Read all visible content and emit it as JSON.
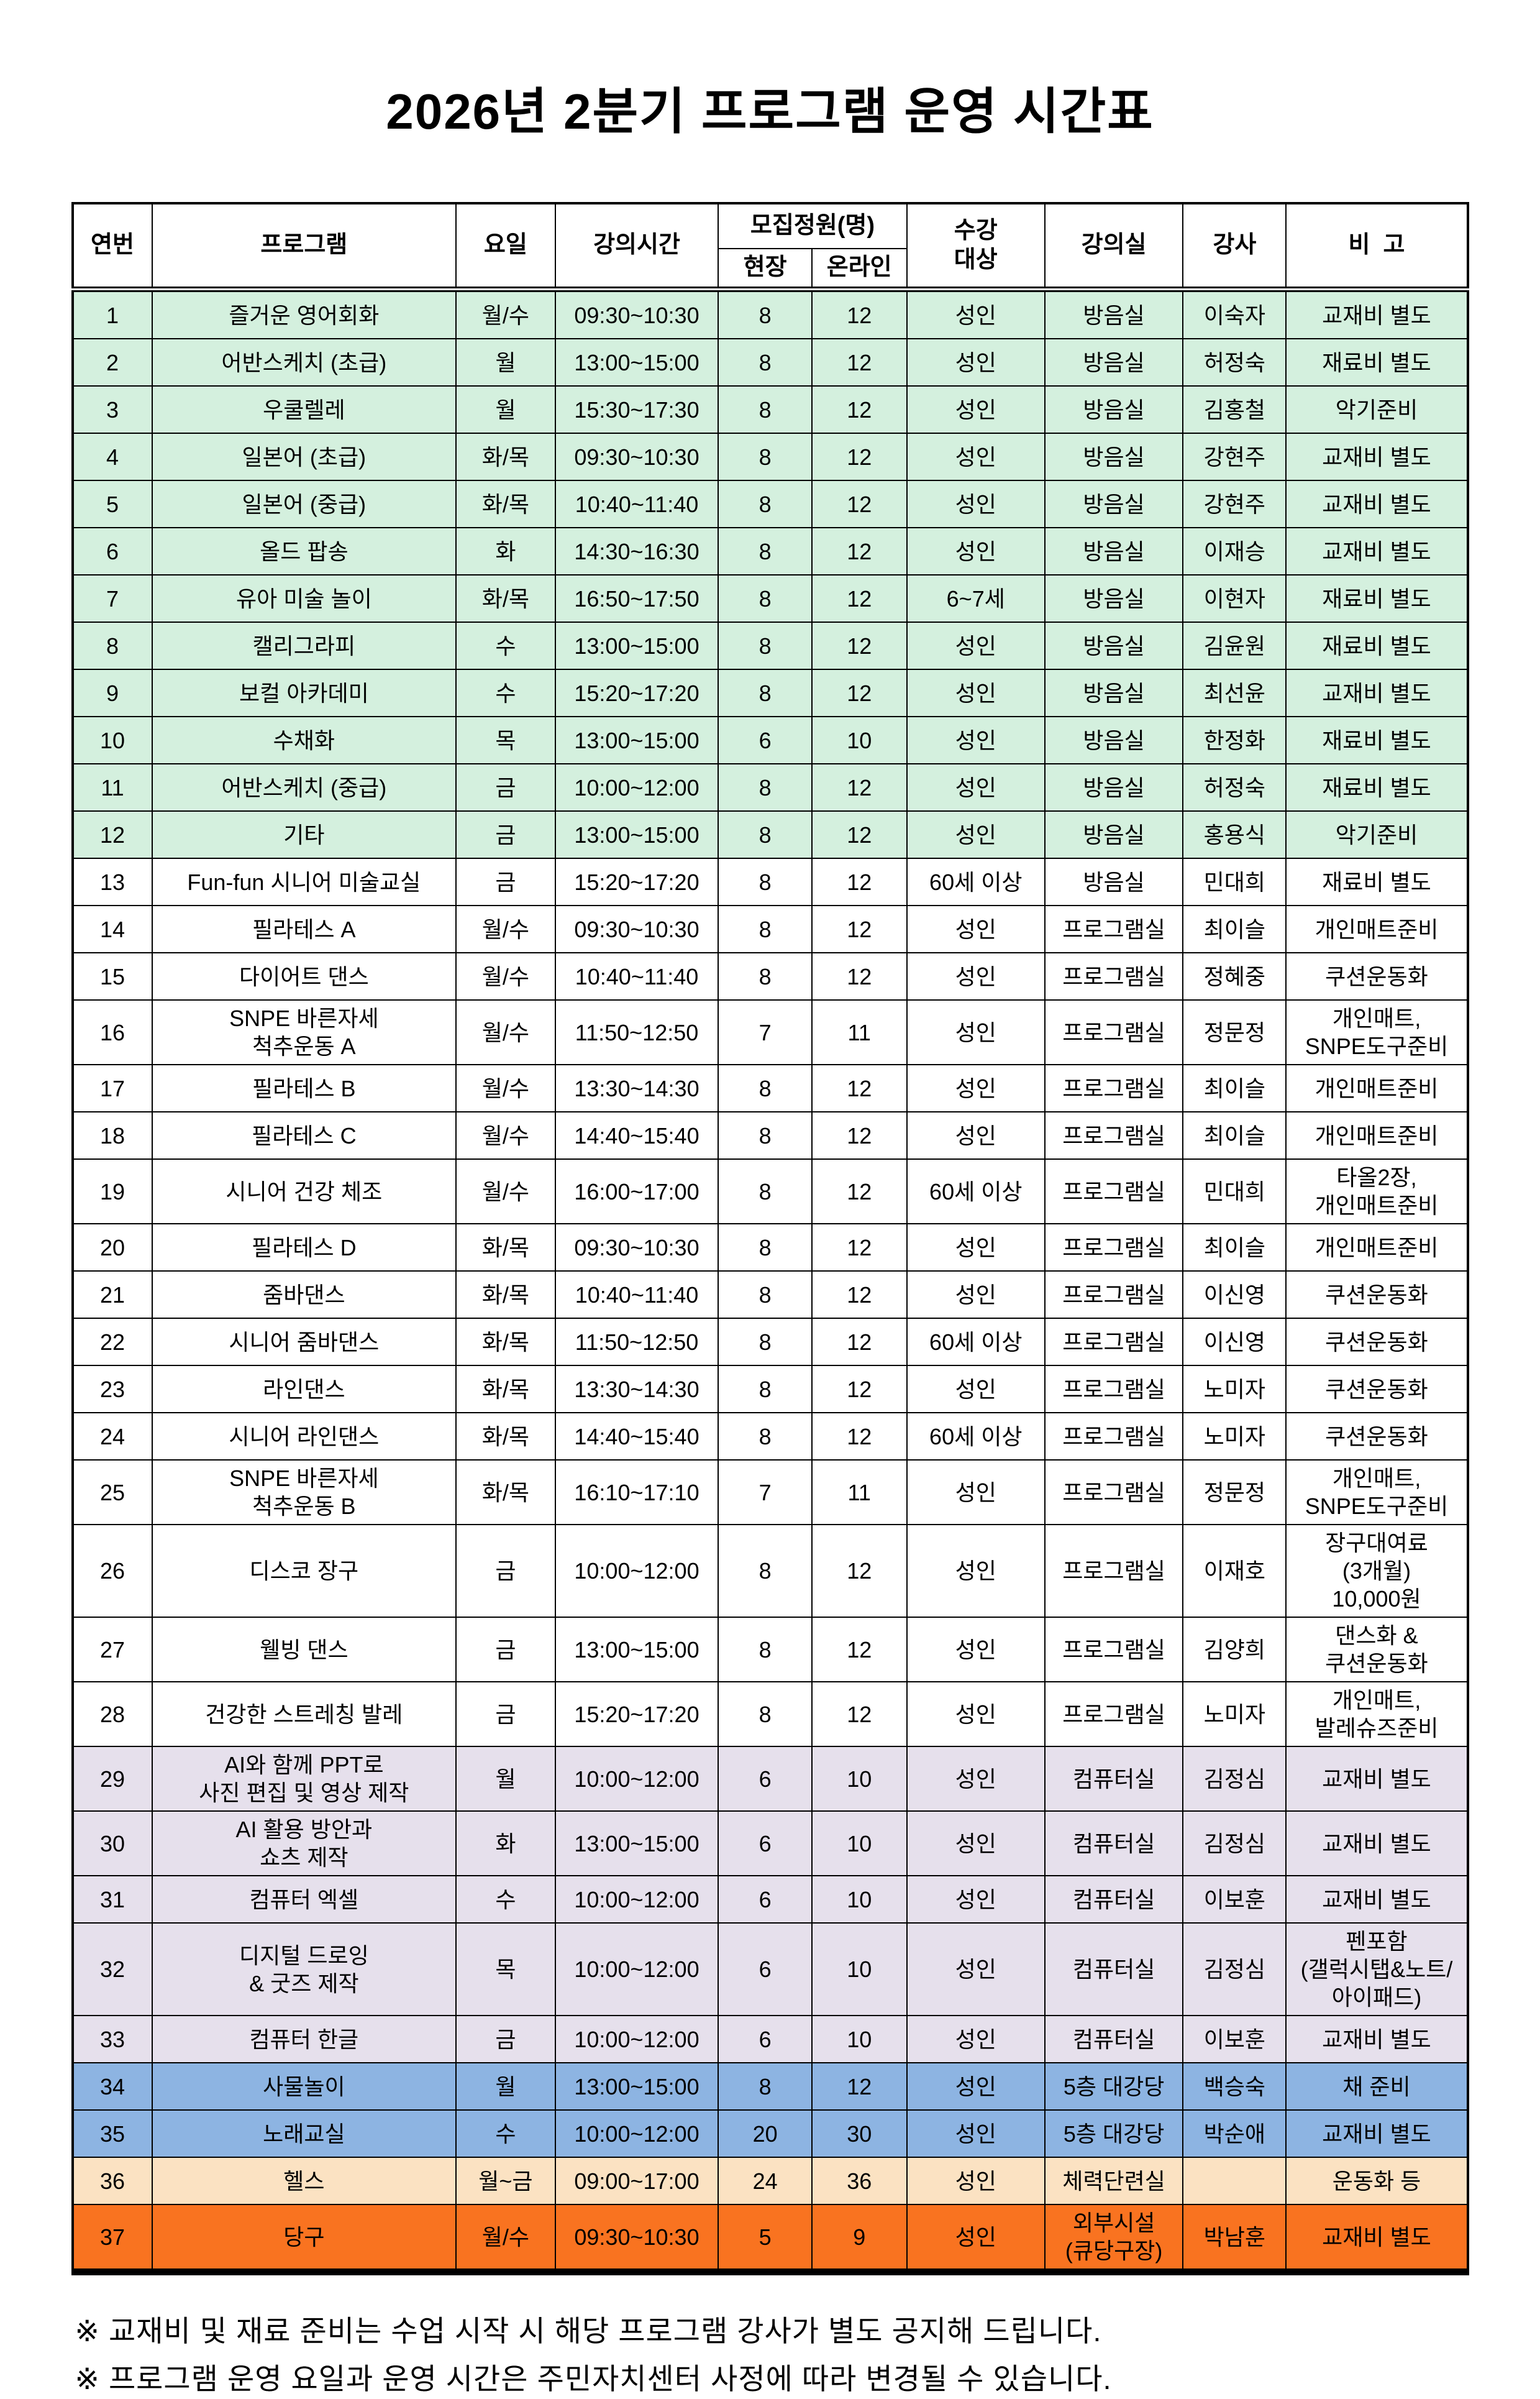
{
  "title": "2026년 2분기 프로그램 운영 시간표",
  "colors": {
    "green": "#d4f0de",
    "white": "#ffffff",
    "lavender": "#e6e0ec",
    "blue": "#8db4e2",
    "peach": "#fbe2c2",
    "orange": "#f97320",
    "border": "#000000"
  },
  "table": {
    "headers": {
      "no": "연번",
      "program": "프로그램",
      "day": "요일",
      "time": "강의시간",
      "capacity": "모집정원(명)",
      "onsite": "현장",
      "online": "온라인",
      "target": "수강\n대상",
      "room": "강의실",
      "instructor": "강사",
      "note": "비  고"
    },
    "rows": [
      {
        "no": "1",
        "program": "즐거운 영어회화",
        "day": "월/수",
        "time": "09:30~10:30",
        "onsite": "8",
        "online": "12",
        "target": "성인",
        "room": "방음실",
        "instructor": "이숙자",
        "note": "교재비 별도",
        "color": "green"
      },
      {
        "no": "2",
        "program": "어반스케치 (초급)",
        "day": "월",
        "time": "13:00~15:00",
        "onsite": "8",
        "online": "12",
        "target": "성인",
        "room": "방음실",
        "instructor": "허정숙",
        "note": "재료비 별도",
        "color": "green"
      },
      {
        "no": "3",
        "program": "우쿨렐레",
        "day": "월",
        "time": "15:30~17:30",
        "onsite": "8",
        "online": "12",
        "target": "성인",
        "room": "방음실",
        "instructor": "김홍철",
        "note": "악기준비",
        "color": "green"
      },
      {
        "no": "4",
        "program": "일본어 (초급)",
        "day": "화/목",
        "time": "09:30~10:30",
        "onsite": "8",
        "online": "12",
        "target": "성인",
        "room": "방음실",
        "instructor": "강현주",
        "note": "교재비 별도",
        "color": "green"
      },
      {
        "no": "5",
        "program": "일본어 (중급)",
        "day": "화/목",
        "time": "10:40~11:40",
        "onsite": "8",
        "online": "12",
        "target": "성인",
        "room": "방음실",
        "instructor": "강현주",
        "note": "교재비 별도",
        "color": "green"
      },
      {
        "no": "6",
        "program": "올드 팝송",
        "day": "화",
        "time": "14:30~16:30",
        "onsite": "8",
        "online": "12",
        "target": "성인",
        "room": "방음실",
        "instructor": "이재승",
        "note": "교재비 별도",
        "color": "green"
      },
      {
        "no": "7",
        "program": "유아 미술 놀이",
        "day": "화/목",
        "time": "16:50~17:50",
        "onsite": "8",
        "online": "12",
        "target": "6~7세",
        "room": "방음실",
        "instructor": "이현자",
        "note": "재료비 별도",
        "color": "green"
      },
      {
        "no": "8",
        "program": "캘리그라피",
        "day": "수",
        "time": "13:00~15:00",
        "onsite": "8",
        "online": "12",
        "target": "성인",
        "room": "방음실",
        "instructor": "김윤원",
        "note": "재료비 별도",
        "color": "green"
      },
      {
        "no": "9",
        "program": "보컬 아카데미",
        "day": "수",
        "time": "15:20~17:20",
        "onsite": "8",
        "online": "12",
        "target": "성인",
        "room": "방음실",
        "instructor": "최선윤",
        "note": "교재비 별도",
        "color": "green"
      },
      {
        "no": "10",
        "program": "수채화",
        "day": "목",
        "time": "13:00~15:00",
        "onsite": "6",
        "online": "10",
        "target": "성인",
        "room": "방음실",
        "instructor": "한정화",
        "note": "재료비 별도",
        "color": "green"
      },
      {
        "no": "11",
        "program": "어반스케치 (중급)",
        "day": "금",
        "time": "10:00~12:00",
        "onsite": "8",
        "online": "12",
        "target": "성인",
        "room": "방음실",
        "instructor": "허정숙",
        "note": "재료비 별도",
        "color": "green"
      },
      {
        "no": "12",
        "program": "기타",
        "day": "금",
        "time": "13:00~15:00",
        "onsite": "8",
        "online": "12",
        "target": "성인",
        "room": "방음실",
        "instructor": "홍용식",
        "note": "악기준비",
        "color": "green"
      },
      {
        "no": "13",
        "program": "Fun-fun 시니어 미술교실",
        "day": "금",
        "time": "15:20~17:20",
        "onsite": "8",
        "online": "12",
        "target": "60세 이상",
        "room": "방음실",
        "instructor": "민대희",
        "note": "재료비 별도",
        "color": "white"
      },
      {
        "no": "14",
        "program": "필라테스 A",
        "day": "월/수",
        "time": "09:30~10:30",
        "onsite": "8",
        "online": "12",
        "target": "성인",
        "room": "프로그램실",
        "instructor": "최이슬",
        "note": "개인매트준비",
        "color": "white"
      },
      {
        "no": "15",
        "program": "다이어트 댄스",
        "day": "월/수",
        "time": "10:40~11:40",
        "onsite": "8",
        "online": "12",
        "target": "성인",
        "room": "프로그램실",
        "instructor": "정혜중",
        "note": "쿠션운동화",
        "color": "white"
      },
      {
        "no": "16",
        "program": "SNPE 바른자세\n척추운동 A",
        "day": "월/수",
        "time": "11:50~12:50",
        "onsite": "7",
        "online": "11",
        "target": "성인",
        "room": "프로그램실",
        "instructor": "정문정",
        "note": "개인매트,\nSNPE도구준비",
        "color": "white"
      },
      {
        "no": "17",
        "program": "필라테스 B",
        "day": "월/수",
        "time": "13:30~14:30",
        "onsite": "8",
        "online": "12",
        "target": "성인",
        "room": "프로그램실",
        "instructor": "최이슬",
        "note": "개인매트준비",
        "color": "white"
      },
      {
        "no": "18",
        "program": "필라테스 C",
        "day": "월/수",
        "time": "14:40~15:40",
        "onsite": "8",
        "online": "12",
        "target": "성인",
        "room": "프로그램실",
        "instructor": "최이슬",
        "note": "개인매트준비",
        "color": "white"
      },
      {
        "no": "19",
        "program": "시니어 건강 체조",
        "day": "월/수",
        "time": "16:00~17:00",
        "onsite": "8",
        "online": "12",
        "target": "60세 이상",
        "room": "프로그램실",
        "instructor": "민대희",
        "note": "타올2장,\n개인매트준비",
        "color": "white"
      },
      {
        "no": "20",
        "program": "필라테스 D",
        "day": "화/목",
        "time": "09:30~10:30",
        "onsite": "8",
        "online": "12",
        "target": "성인",
        "room": "프로그램실",
        "instructor": "최이슬",
        "note": "개인매트준비",
        "color": "white"
      },
      {
        "no": "21",
        "program": "줌바댄스",
        "day": "화/목",
        "time": "10:40~11:40",
        "onsite": "8",
        "online": "12",
        "target": "성인",
        "room": "프로그램실",
        "instructor": "이신영",
        "note": "쿠션운동화",
        "color": "white"
      },
      {
        "no": "22",
        "program": "시니어 줌바댄스",
        "day": "화/목",
        "time": "11:50~12:50",
        "onsite": "8",
        "online": "12",
        "target": "60세 이상",
        "room": "프로그램실",
        "instructor": "이신영",
        "note": "쿠션운동화",
        "color": "white"
      },
      {
        "no": "23",
        "program": "라인댄스",
        "day": "화/목",
        "time": "13:30~14:30",
        "onsite": "8",
        "online": "12",
        "target": "성인",
        "room": "프로그램실",
        "instructor": "노미자",
        "note": "쿠션운동화",
        "color": "white"
      },
      {
        "no": "24",
        "program": "시니어 라인댄스",
        "day": "화/목",
        "time": "14:40~15:40",
        "onsite": "8",
        "online": "12",
        "target": "60세 이상",
        "room": "프로그램실",
        "instructor": "노미자",
        "note": "쿠션운동화",
        "color": "white"
      },
      {
        "no": "25",
        "program": "SNPE 바른자세\n척추운동 B",
        "day": "화/목",
        "time": "16:10~17:10",
        "onsite": "7",
        "online": "11",
        "target": "성인",
        "room": "프로그램실",
        "instructor": "정문정",
        "note": "개인매트,\nSNPE도구준비",
        "color": "white"
      },
      {
        "no": "26",
        "program": "디스코 장구",
        "day": "금",
        "time": "10:00~12:00",
        "onsite": "8",
        "online": "12",
        "target": "성인",
        "room": "프로그램실",
        "instructor": "이재호",
        "note": "장구대여료\n(3개월)\n10,000원",
        "color": "white"
      },
      {
        "no": "27",
        "program": "웰빙 댄스",
        "day": "금",
        "time": "13:00~15:00",
        "onsite": "8",
        "online": "12",
        "target": "성인",
        "room": "프로그램실",
        "instructor": "김양희",
        "note": "댄스화 &\n쿠션운동화",
        "color": "white"
      },
      {
        "no": "28",
        "program": "건강한 스트레칭 발레",
        "day": "금",
        "time": "15:20~17:20",
        "onsite": "8",
        "online": "12",
        "target": "성인",
        "room": "프로그램실",
        "instructor": "노미자",
        "note": "개인매트,\n발레슈즈준비",
        "color": "white"
      },
      {
        "no": "29",
        "program": "AI와 함께 PPT로\n사진 편집 및 영상 제작",
        "day": "월",
        "time": "10:00~12:00",
        "onsite": "6",
        "online": "10",
        "target": "성인",
        "room": "컴퓨터실",
        "instructor": "김정심",
        "note": "교재비 별도",
        "color": "lavender"
      },
      {
        "no": "30",
        "program": "AI 활용 방안과\n쇼츠 제작",
        "day": "화",
        "time": "13:00~15:00",
        "onsite": "6",
        "online": "10",
        "target": "성인",
        "room": "컴퓨터실",
        "instructor": "김정심",
        "note": "교재비 별도",
        "color": "lavender"
      },
      {
        "no": "31",
        "program": "컴퓨터 엑셀",
        "day": "수",
        "time": "10:00~12:00",
        "onsite": "6",
        "online": "10",
        "target": "성인",
        "room": "컴퓨터실",
        "instructor": "이보훈",
        "note": "교재비 별도",
        "color": "lavender"
      },
      {
        "no": "32",
        "program": "디지털 드로잉\n& 굿즈 제작",
        "day": "목",
        "time": "10:00~12:00",
        "onsite": "6",
        "online": "10",
        "target": "성인",
        "room": "컴퓨터실",
        "instructor": "김정심",
        "note": "펜포함\n(갤럭시탭&노트/\n아이패드)",
        "color": "lavender"
      },
      {
        "no": "33",
        "program": "컴퓨터 한글",
        "day": "금",
        "time": "10:00~12:00",
        "onsite": "6",
        "online": "10",
        "target": "성인",
        "room": "컴퓨터실",
        "instructor": "이보훈",
        "note": "교재비 별도",
        "color": "lavender"
      },
      {
        "no": "34",
        "program": "사물놀이",
        "day": "월",
        "time": "13:00~15:00",
        "onsite": "8",
        "online": "12",
        "target": "성인",
        "room": "5층 대강당",
        "instructor": "백승숙",
        "note": "채 준비",
        "color": "blue"
      },
      {
        "no": "35",
        "program": "노래교실",
        "day": "수",
        "time": "10:00~12:00",
        "onsite": "20",
        "online": "30",
        "target": "성인",
        "room": "5층 대강당",
        "instructor": "박순애",
        "note": "교재비 별도",
        "color": "blue"
      },
      {
        "no": "36",
        "program": "헬스",
        "day": "월~금",
        "time": "09:00~17:00",
        "onsite": "24",
        "online": "36",
        "target": "성인",
        "room": "체력단련실",
        "instructor": "",
        "note": "운동화 등",
        "color": "peach"
      },
      {
        "no": "37",
        "program": "당구",
        "day": "월/수",
        "time": "09:30~10:30",
        "onsite": "5",
        "online": "9",
        "target": "성인",
        "room": "외부시설\n(큐당구장)",
        "instructor": "박남훈",
        "note": "교재비 별도",
        "color": "orange"
      }
    ]
  },
  "footnotes": [
    "※ 교재비 및 재료 준비는 수업 시작 시 해당 프로그램 강사가 별도 공지해 드립니다.",
    "※ 프로그램 운영 요일과 운영 시간은 주민자치센터 사정에 따라 변경될 수 있습니다."
  ]
}
